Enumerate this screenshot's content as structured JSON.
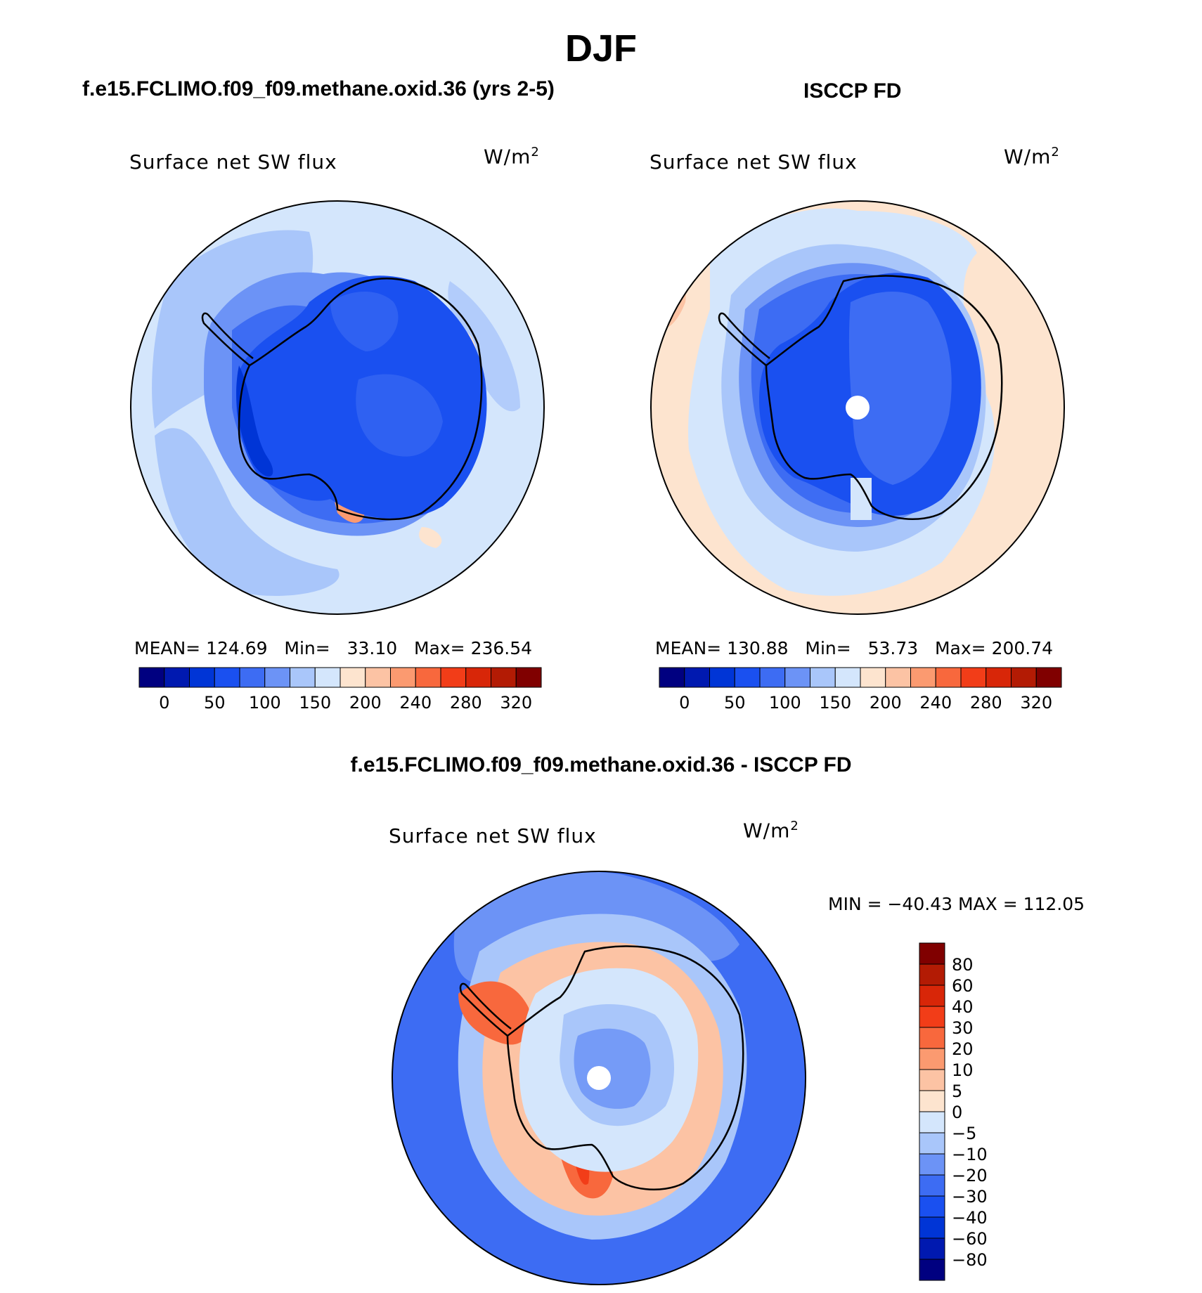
{
  "title": "DJF",
  "panels": [
    {
      "id": "model",
      "heading": "f.e15.FCLIMO.f09_f09.methane.oxid.36 (yrs 2-5)",
      "field_label": "Surface net SW flux",
      "units": "W/m",
      "units_exp": "2",
      "stats": {
        "mean_label": "MEAN=",
        "mean": "124.69",
        "min_label": "Min=",
        "min": "33.10",
        "max_label": "Max=",
        "max": "236.54"
      }
    },
    {
      "id": "obs",
      "heading": "ISCCP FD",
      "field_label": "Surface net SW flux",
      "units": "W/m",
      "units_exp": "2",
      "stats": {
        "mean_label": "MEAN=",
        "mean": "130.88",
        "min_label": "Min=",
        "min": "53.73",
        "max_label": "Max=",
        "max": "200.74"
      }
    },
    {
      "id": "diff",
      "heading": "f.e15.FCLIMO.f09_f09.methane.oxid.36 - ISCCP FD",
      "field_label": "Surface net SW flux",
      "units": "W/m",
      "units_exp": "2",
      "stats_text": "MIN = −40.43 MAX = 112.05"
    }
  ],
  "colorbar_abs": {
    "colors": [
      "#000080",
      "#0019b0",
      "#0035d6",
      "#1a50f0",
      "#3d6cf3",
      "#6c93f6",
      "#a9c6fa",
      "#d4e6fc",
      "#fde4cf",
      "#fcc3a4",
      "#fb9a70",
      "#f8683d",
      "#f23d18",
      "#d82608",
      "#b31b04",
      "#800000"
    ],
    "tick_labels": [
      "0",
      "50",
      "100",
      "150",
      "200",
      "240",
      "280",
      "320"
    ]
  },
  "colorbar_diff": {
    "colors_top_to_bottom": [
      "#800000",
      "#b31b04",
      "#d82608",
      "#f23d18",
      "#f8683d",
      "#fb9a70",
      "#fcc3a4",
      "#fde4cf",
      "#d4e6fc",
      "#a9c6fa",
      "#6c93f6",
      "#3d6cf3",
      "#1a50f0",
      "#0035d6",
      "#0019b0",
      "#000080"
    ],
    "tick_labels": [
      "80",
      "60",
      "40",
      "30",
      "20",
      "10",
      "5",
      "0",
      "−5",
      "−10",
      "−20",
      "−30",
      "−40",
      "−60",
      "−80"
    ]
  }
}
